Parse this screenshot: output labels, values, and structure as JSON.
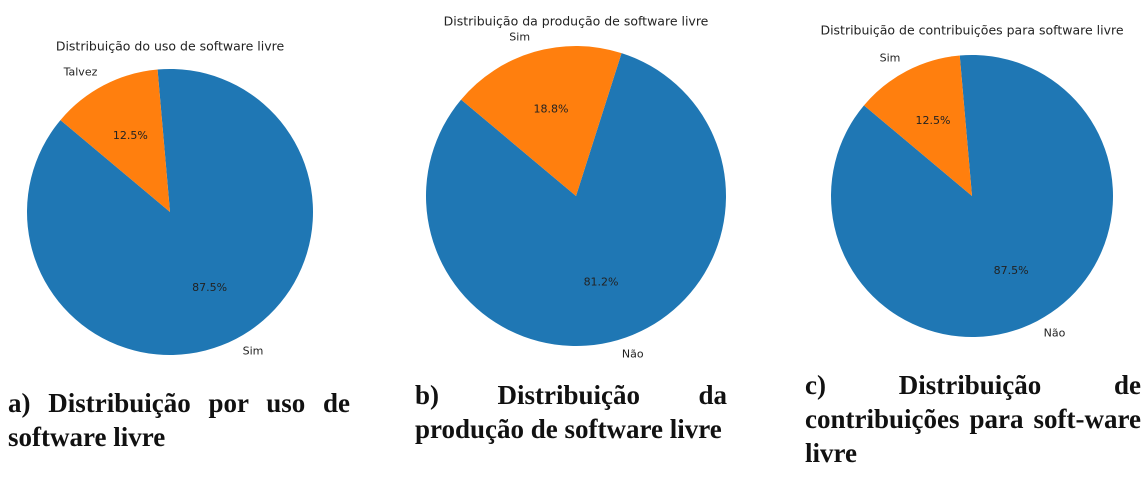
{
  "chart_data": [
    {
      "type": "pie",
      "title": "Distribuição do uso de software livre",
      "categories": [
        "Sim",
        "Talvez"
      ],
      "values": [
        87.5,
        12.5
      ],
      "value_labels": [
        "87.5%",
        "12.5%"
      ],
      "colors": [
        "#1f77b4",
        "#ff7f0e"
      ],
      "startangle": 140,
      "caption": "a) Distribuição por uso de software livre"
    },
    {
      "type": "pie",
      "title": "Distribuição da produção de software livre",
      "categories": [
        "Não",
        "Sim"
      ],
      "values": [
        81.2,
        18.8
      ],
      "value_labels": [
        "81.2%",
        "18.8%"
      ],
      "colors": [
        "#1f77b4",
        "#ff7f0e"
      ],
      "startangle": 140,
      "caption": "b) Distribuição da produção de software livre"
    },
    {
      "type": "pie",
      "title": "Distribuição de contribuições para software livre",
      "categories": [
        "Não",
        "Sim"
      ],
      "values": [
        87.5,
        12.5
      ],
      "value_labels": [
        "87.5%",
        "12.5%"
      ],
      "colors": [
        "#1f77b4",
        "#ff7f0e"
      ],
      "startangle": 140,
      "caption": "c) Distribuição de contribuições para soft-ware livre"
    }
  ]
}
